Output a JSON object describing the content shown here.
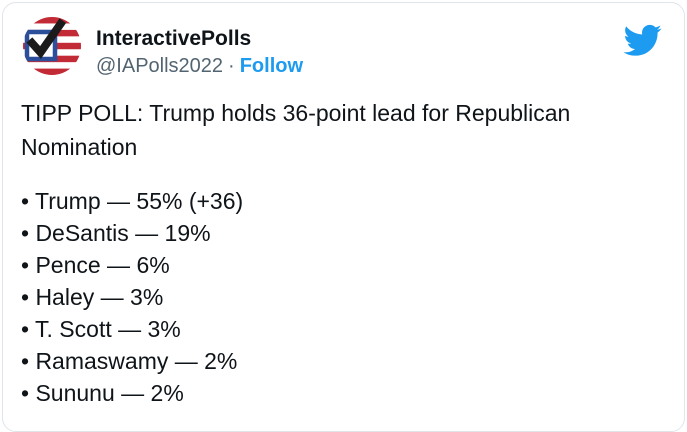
{
  "tweet": {
    "author": {
      "name": "InteractivePolls",
      "handle": "@IAPolls2022",
      "separator": "·",
      "follow_label": "Follow"
    },
    "body": {
      "headline": "TIPP POLL: Trump holds 36-point lead for Republican Nomination",
      "bullet_char": "•",
      "dash_char": "—",
      "results": [
        {
          "candidate": "Trump",
          "percent": "55%",
          "note": "(+36)"
        },
        {
          "candidate": "DeSantis",
          "percent": "19%",
          "note": ""
        },
        {
          "candidate": "Pence",
          "percent": "6%",
          "note": ""
        },
        {
          "candidate": "Haley",
          "percent": "3%",
          "note": ""
        },
        {
          "candidate": "T. Scott",
          "percent": "3%",
          "note": ""
        },
        {
          "candidate": "Ramaswamy",
          "percent": "2%",
          "note": ""
        },
        {
          "candidate": "Sununu",
          "percent": "2%",
          "note": ""
        }
      ]
    },
    "icons": {
      "twitter_logo": "twitter-bird-icon",
      "avatar": "us-flag-checkbox-avatar"
    },
    "colors": {
      "accent_blue": "#1d9bf0",
      "text_primary": "#0f1419",
      "text_secondary": "#536471",
      "card_border": "#dfe5e9",
      "flag_red": "#c22a35",
      "checkbox_blue": "#2c4f9c",
      "checkmark_black": "#1b1b1b"
    }
  }
}
